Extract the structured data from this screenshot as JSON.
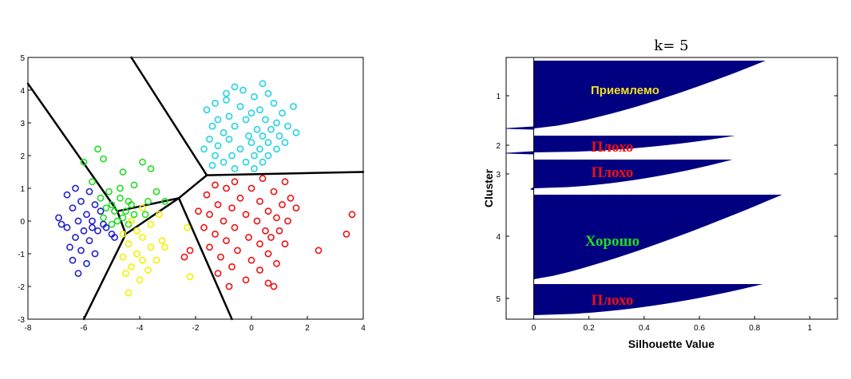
{
  "chart_data": [
    {
      "type": "scatter",
      "title": "",
      "xlabel": "",
      "ylabel": "",
      "xlim": [
        -8,
        4
      ],
      "ylim": [
        -3,
        5
      ],
      "xticks": [
        "-8",
        "-6",
        "-4",
        "-2",
        "0",
        "2",
        "4"
      ],
      "yticks": [
        "-3",
        "-2",
        "-1",
        "0",
        "1",
        "2",
        "3",
        "4",
        "5"
      ],
      "grid": false,
      "marker": "circle",
      "colors": {
        "cyan": "#22d3e6",
        "red": "#ee1111",
        "green": "#22dd22",
        "blue": "#2222cc",
        "yellow": "#f2f200",
        "boundary": "#000000"
      },
      "series": [
        {
          "color": "cyan",
          "points": [
            [
              -1.3,
              3.6
            ],
            [
              -0.6,
              4.1
            ],
            [
              -0.3,
              4.0
            ],
            [
              0.4,
              4.2
            ],
            [
              0.6,
              3.9
            ],
            [
              -0.9,
              3.7
            ],
            [
              0.1,
              3.8
            ],
            [
              0.8,
              3.6
            ],
            [
              1.5,
              3.5
            ],
            [
              -1.6,
              3.4
            ],
            [
              -0.4,
              3.5
            ],
            [
              0.3,
              3.4
            ],
            [
              0.0,
              3.3
            ],
            [
              -0.8,
              3.2
            ],
            [
              1.1,
              3.3
            ],
            [
              -1.2,
              3.1
            ],
            [
              -0.2,
              3.1
            ],
            [
              0.5,
              3.1
            ],
            [
              0.9,
              3.0
            ],
            [
              1.3,
              2.9
            ],
            [
              -1.4,
              2.9
            ],
            [
              -0.6,
              2.9
            ],
            [
              0.2,
              2.8
            ],
            [
              0.7,
              2.8
            ],
            [
              -1.0,
              2.7
            ],
            [
              -0.1,
              2.6
            ],
            [
              0.4,
              2.6
            ],
            [
              1.0,
              2.6
            ],
            [
              1.6,
              2.7
            ],
            [
              -1.5,
              2.5
            ],
            [
              -0.8,
              2.5
            ],
            [
              0.0,
              2.4
            ],
            [
              0.6,
              2.4
            ],
            [
              -1.2,
              2.3
            ],
            [
              -0.4,
              2.2
            ],
            [
              0.3,
              2.2
            ],
            [
              0.9,
              2.2
            ],
            [
              -1.3,
              2.0
            ],
            [
              -0.7,
              2.0
            ],
            [
              0.1,
              2.0
            ],
            [
              0.6,
              2.0
            ],
            [
              -1.0,
              1.8
            ],
            [
              -0.2,
              1.8
            ],
            [
              0.4,
              1.8
            ],
            [
              -1.4,
              1.7
            ],
            [
              -0.6,
              1.6
            ],
            [
              0.1,
              1.6
            ],
            [
              -1.7,
              2.2
            ],
            [
              1.2,
              2.4
            ],
            [
              -0.9,
              3.9
            ]
          ]
        },
        {
          "color": "red",
          "points": [
            [
              -1.3,
              1.1
            ],
            [
              -0.6,
              1.2
            ],
            [
              0.4,
              1.3
            ],
            [
              1.2,
              1.2
            ],
            [
              -0.9,
              1.0
            ],
            [
              0.0,
              1.0
            ],
            [
              0.8,
              0.9
            ],
            [
              1.4,
              0.7
            ],
            [
              -1.6,
              0.8
            ],
            [
              -0.4,
              0.7
            ],
            [
              0.3,
              0.6
            ],
            [
              1.1,
              0.5
            ],
            [
              -1.2,
              0.5
            ],
            [
              -0.7,
              0.4
            ],
            [
              0.6,
              0.3
            ],
            [
              1.6,
              0.4
            ],
            [
              -1.5,
              0.2
            ],
            [
              -0.2,
              0.2
            ],
            [
              0.9,
              0.1
            ],
            [
              -1.0,
              0.0
            ],
            [
              0.2,
              0.0
            ],
            [
              1.3,
              0.0
            ],
            [
              -1.7,
              -0.2
            ],
            [
              -0.6,
              -0.2
            ],
            [
              0.5,
              -0.3
            ],
            [
              1.0,
              -0.3
            ],
            [
              -1.3,
              -0.4
            ],
            [
              -0.1,
              -0.5
            ],
            [
              0.7,
              -0.5
            ],
            [
              -0.9,
              -0.6
            ],
            [
              0.3,
              -0.7
            ],
            [
              1.2,
              -0.7
            ],
            [
              -1.5,
              -0.8
            ],
            [
              -0.5,
              -0.9
            ],
            [
              0.6,
              -1.0
            ],
            [
              -1.1,
              -1.1
            ],
            [
              0.0,
              -1.2
            ],
            [
              0.9,
              -1.3
            ],
            [
              -0.7,
              -1.4
            ],
            [
              0.3,
              -1.5
            ],
            [
              -1.2,
              -1.6
            ],
            [
              -0.2,
              -1.8
            ],
            [
              0.6,
              -1.9
            ],
            [
              -0.8,
              -2.0
            ],
            [
              3.6,
              0.2
            ],
            [
              3.4,
              -0.4
            ],
            [
              2.4,
              -0.9
            ],
            [
              -2.2,
              -0.9
            ],
            [
              -2.4,
              -1.1
            ],
            [
              -1.9,
              0.3
            ],
            [
              0.8,
              -2.0
            ]
          ]
        },
        {
          "color": "green",
          "points": [
            [
              -5.5,
              2.2
            ],
            [
              -6.0,
              1.8
            ],
            [
              -5.3,
              1.9
            ],
            [
              -3.9,
              1.8
            ],
            [
              -3.6,
              1.6
            ],
            [
              -4.6,
              1.5
            ],
            [
              -5.7,
              1.2
            ],
            [
              -4.2,
              1.1
            ],
            [
              -4.7,
              1.0
            ],
            [
              -5.1,
              0.9
            ],
            [
              -3.4,
              0.9
            ],
            [
              -5.4,
              0.7
            ],
            [
              -4.4,
              0.6
            ],
            [
              -3.7,
              0.6
            ],
            [
              -3.1,
              0.6
            ],
            [
              -5.0,
              0.5
            ],
            [
              -4.9,
              0.3
            ],
            [
              -4.5,
              0.3
            ],
            [
              -4.2,
              0.2
            ],
            [
              -4.6,
              0.1
            ],
            [
              -4.8,
              0.0
            ],
            [
              -5.0,
              -0.1
            ],
            [
              -4.4,
              -0.1
            ],
            [
              -4.3,
              0.5
            ],
            [
              -5.2,
              0.4
            ],
            [
              -3.8,
              0.2
            ],
            [
              -4.7,
              0.7
            ],
            [
              -5.3,
              0.1
            ]
          ]
        },
        {
          "color": "blue",
          "points": [
            [
              -6.3,
              1.0
            ],
            [
              -6.6,
              0.8
            ],
            [
              -5.8,
              0.9
            ],
            [
              -6.1,
              0.6
            ],
            [
              -5.6,
              0.5
            ],
            [
              -6.4,
              0.4
            ],
            [
              -6.9,
              0.1
            ],
            [
              -5.9,
              0.2
            ],
            [
              -5.4,
              0.3
            ],
            [
              -6.2,
              0.0
            ],
            [
              -5.7,
              0.0
            ],
            [
              -5.3,
              -0.1
            ],
            [
              -6.6,
              -0.2
            ],
            [
              -6.0,
              -0.3
            ],
            [
              -5.5,
              -0.3
            ],
            [
              -5.0,
              -0.4
            ],
            [
              -6.3,
              -0.5
            ],
            [
              -5.8,
              -0.6
            ],
            [
              -6.5,
              -0.8
            ],
            [
              -6.1,
              -0.9
            ],
            [
              -5.6,
              -1.0
            ],
            [
              -6.4,
              -1.2
            ],
            [
              -5.9,
              -1.3
            ],
            [
              -6.2,
              -1.6
            ],
            [
              -5.2,
              -0.2
            ],
            [
              -4.9,
              -0.5
            ],
            [
              -5.7,
              -0.2
            ],
            [
              -6.8,
              -0.1
            ]
          ]
        },
        {
          "color": "yellow",
          "points": [
            [
              -3.9,
              0.4
            ],
            [
              -3.3,
              0.2
            ],
            [
              -4.3,
              0.0
            ],
            [
              -3.6,
              -0.1
            ],
            [
              -4.1,
              -0.3
            ],
            [
              -2.3,
              -0.2
            ],
            [
              -4.6,
              -0.4
            ],
            [
              -3.9,
              -0.5
            ],
            [
              -3.2,
              -0.6
            ],
            [
              -4.4,
              -0.7
            ],
            [
              -3.6,
              -0.8
            ],
            [
              -4.1,
              -1.0
            ],
            [
              -4.6,
              -1.1
            ],
            [
              -3.9,
              -1.2
            ],
            [
              -4.3,
              -1.4
            ],
            [
              -3.7,
              -1.5
            ],
            [
              -4.5,
              -1.6
            ],
            [
              -4.0,
              -1.8
            ],
            [
              -4.4,
              -2.2
            ],
            [
              -2.2,
              -1.7
            ],
            [
              -3.1,
              -0.8
            ],
            [
              -3.4,
              -1.2
            ]
          ]
        }
      ],
      "boundaries": [
        [
          [
            -8.0,
            4.2
          ],
          [
            -4.8,
            0.3
          ]
        ],
        [
          [
            -4.8,
            0.3
          ],
          [
            -4.5,
            -0.4
          ]
        ],
        [
          [
            -4.5,
            -0.4
          ],
          [
            -6.0,
            -3.0
          ]
        ],
        [
          [
            -4.5,
            -0.4
          ],
          [
            -2.6,
            0.7
          ]
        ],
        [
          [
            -2.6,
            0.7
          ],
          [
            -1.6,
            1.4
          ]
        ],
        [
          [
            -2.6,
            0.7
          ],
          [
            -0.7,
            -3.0
          ]
        ],
        [
          [
            -1.6,
            1.4
          ],
          [
            -4.3,
            5.0
          ]
        ],
        [
          [
            -1.6,
            1.4
          ],
          [
            4.0,
            1.5
          ]
        ],
        [
          [
            -4.8,
            0.3
          ],
          [
            -2.6,
            0.7
          ]
        ]
      ]
    },
    {
      "type": "bar",
      "title": "k= 5",
      "xlabel": "Silhouette Value",
      "ylabel": "Cluster",
      "xlim": [
        -0.1,
        1.1
      ],
      "xticks": [
        "0",
        "0.2",
        "0.4",
        "0.6",
        "0.8",
        "1"
      ],
      "yticks": [
        "1",
        "2",
        "3",
        "4",
        "5"
      ],
      "orientation": "horizontal",
      "grid": false,
      "colors": {
        "bar": "#000080"
      },
      "clusters": [
        {
          "label": "1",
          "max": 0.84,
          "min": 0.0,
          "note": "Приемлемо",
          "note_color": "#f0e020",
          "note_style": "sans"
        },
        {
          "label": "2",
          "max": 0.73,
          "min": 0.0,
          "note": "Плохо",
          "note_color": "#ee1111",
          "note_style": "serif"
        },
        {
          "label": "3",
          "max": 0.72,
          "min": 0.0,
          "note": "Плохо",
          "note_color": "#ee1111",
          "note_style": "serif"
        },
        {
          "label": "4",
          "max": 0.9,
          "min": 0.0,
          "note": "Хорошо",
          "note_color": "#22dd22",
          "note_style": "serif"
        },
        {
          "label": "5",
          "max": 0.83,
          "min": 0.0,
          "note": "Плохо",
          "note_color": "#ee1111",
          "note_style": "serif"
        }
      ],
      "negatives": [
        {
          "cluster": "1",
          "value": -0.1
        },
        {
          "cluster": "2",
          "value": -0.1
        },
        {
          "cluster": "3",
          "value": -0.01
        }
      ]
    }
  ]
}
